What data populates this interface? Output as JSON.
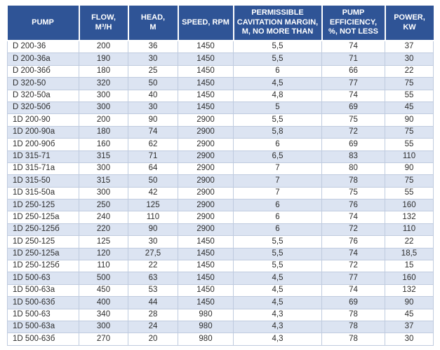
{
  "colors": {
    "header_bg": "#2F5496",
    "header_text": "#FFFFFF",
    "band_bg": "#DCE4F2",
    "border": "#BFCBDF",
    "text": "#2D2D2D"
  },
  "table": {
    "columns": [
      {
        "id": "pump",
        "label": "PUMP"
      },
      {
        "id": "flow",
        "label": "FLOW,\nM³/H"
      },
      {
        "id": "head",
        "label": "HEAD,\nM"
      },
      {
        "id": "speed",
        "label": "SPEED, RPM"
      },
      {
        "id": "cavitation",
        "label": "PERMISSIBLE\nCAVITATION MARGIN,\nM, NO MORE THAN"
      },
      {
        "id": "efficiency",
        "label": "PUMP\nEFFICIENCY,\n%, NOT LESS"
      },
      {
        "id": "power",
        "label": "POWER,\nKW"
      }
    ],
    "rows": [
      [
        "D 200-36",
        "200",
        "36",
        "1450",
        "5,5",
        "74",
        "37"
      ],
      [
        "D 200-36a",
        "190",
        "30",
        "1450",
        "5,5",
        "71",
        "30"
      ],
      [
        "D 200-36б",
        "180",
        "25",
        "1450",
        "6",
        "66",
        "22"
      ],
      [
        "D 320-50",
        "320",
        "50",
        "1450",
        "4,5",
        "77",
        "75"
      ],
      [
        "D 320-50a",
        "300",
        "40",
        "1450",
        "4,8",
        "74",
        "55"
      ],
      [
        "D 320-50б",
        "300",
        "30",
        "1450",
        "5",
        "69",
        "45"
      ],
      [
        "1D 200-90",
        "200",
        "90",
        "2900",
        "5,5",
        "75",
        "90"
      ],
      [
        "1D 200-90a",
        "180",
        "74",
        "2900",
        "5,8",
        "72",
        "75"
      ],
      [
        "1D 200-90б",
        "160",
        "62",
        "2900",
        "6",
        "69",
        "55"
      ],
      [
        "1D 315-71",
        "315",
        "71",
        "2900",
        "6,5",
        "83",
        "110"
      ],
      [
        "1D 315-71a",
        "300",
        "64",
        "2900",
        "7",
        "80",
        "90"
      ],
      [
        "1D 315-50",
        "315",
        "50",
        "2900",
        "7",
        "78",
        "75"
      ],
      [
        "1D 315-50a",
        "300",
        "42",
        "2900",
        "7",
        "75",
        "55"
      ],
      [
        "1D 250-125",
        "250",
        "125",
        "2900",
        "6",
        "76",
        "160"
      ],
      [
        "1D 250-125a",
        "240",
        "110",
        "2900",
        "6",
        "74",
        "132"
      ],
      [
        "1D 250-125б",
        "220",
        "90",
        "2900",
        "6",
        "72",
        "110"
      ],
      [
        "1D 250-125",
        "125",
        "30",
        "1450",
        "5,5",
        "76",
        "22"
      ],
      [
        "1D 250-125a",
        "120",
        "27,5",
        "1450",
        "5,5",
        "74",
        "18,5"
      ],
      [
        "1D 250-125б",
        "110",
        "22",
        "1450",
        "5,5",
        "72",
        "15"
      ],
      [
        "1D 500-63",
        "500",
        "63",
        "1450",
        "4,5",
        "77",
        "160"
      ],
      [
        "1D 500-63a",
        "450",
        "53",
        "1450",
        "4,5",
        "74",
        "132"
      ],
      [
        "1D 500-63б",
        "400",
        "44",
        "1450",
        "4,5",
        "69",
        "90"
      ],
      [
        "1D 500-63",
        "340",
        "28",
        "980",
        "4,3",
        "78",
        "45"
      ],
      [
        "1D 500-63a",
        "300",
        "24",
        "980",
        "4,3",
        "78",
        "37"
      ],
      [
        "1D 500-63б",
        "270",
        "20",
        "980",
        "4,3",
        "78",
        "30"
      ]
    ]
  }
}
